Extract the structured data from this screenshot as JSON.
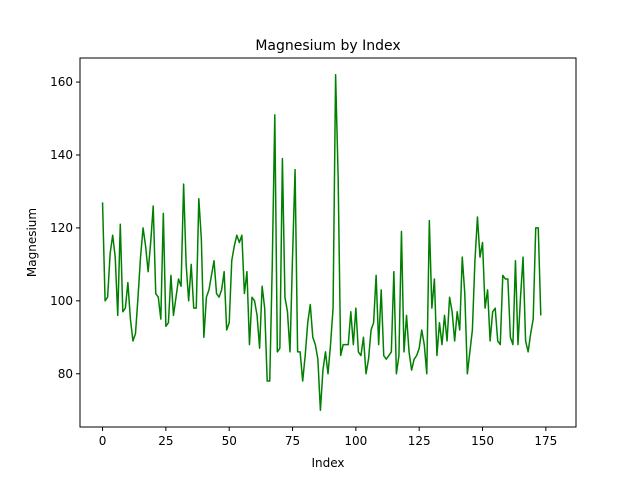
{
  "chart_data": {
    "type": "line",
    "title": "Magnesium by Index",
    "xlabel": "Index",
    "ylabel": "Magnesium",
    "xlim": [
      -8.9,
      186.9
    ],
    "ylim": [
      65.4,
      166.6
    ],
    "xticks": [
      0,
      25,
      50,
      75,
      100,
      125,
      150,
      175
    ],
    "yticks": [
      80,
      100,
      120,
      140,
      160
    ],
    "grid": false,
    "line_color": "#008000",
    "series": [
      {
        "values": [
          127,
          100,
          101,
          113,
          118,
          112,
          96,
          121,
          97,
          98,
          105,
          95,
          89,
          91,
          101,
          112,
          120,
          115,
          108,
          116,
          126,
          102,
          101,
          95,
          124,
          93,
          94,
          107,
          96,
          101,
          106,
          104,
          132,
          110,
          100,
          110,
          98,
          98,
          128,
          117,
          90,
          101,
          103,
          107,
          111,
          102,
          101,
          103,
          108,
          92,
          94,
          111,
          115,
          118,
          116,
          118,
          102,
          108,
          88,
          101,
          100,
          96,
          87,
          104,
          98,
          78,
          78,
          110,
          151,
          86,
          87,
          139,
          101,
          97,
          86,
          112,
          136,
          86,
          86,
          78,
          85,
          94,
          99,
          90,
          88,
          84,
          70,
          81,
          86,
          80,
          88,
          98,
          162,
          134,
          85,
          88,
          88,
          88,
          97,
          88,
          98,
          86,
          85,
          90,
          80,
          84,
          92,
          94,
          107,
          88,
          103,
          85,
          84,
          85,
          86,
          108,
          80,
          85,
          119,
          86,
          96,
          86,
          81,
          84,
          85,
          87,
          92,
          88,
          80,
          122,
          98,
          106,
          85,
          94,
          88,
          96,
          89,
          101,
          97,
          89,
          97,
          92,
          112,
          102,
          80,
          86,
          92,
          111,
          123,
          112,
          116,
          98,
          103,
          89,
          97,
          98,
          89,
          88,
          107,
          106,
          106,
          90,
          88,
          111,
          88,
          101,
          112,
          89,
          86,
          91,
          95,
          120,
          120,
          96
        ]
      }
    ]
  }
}
